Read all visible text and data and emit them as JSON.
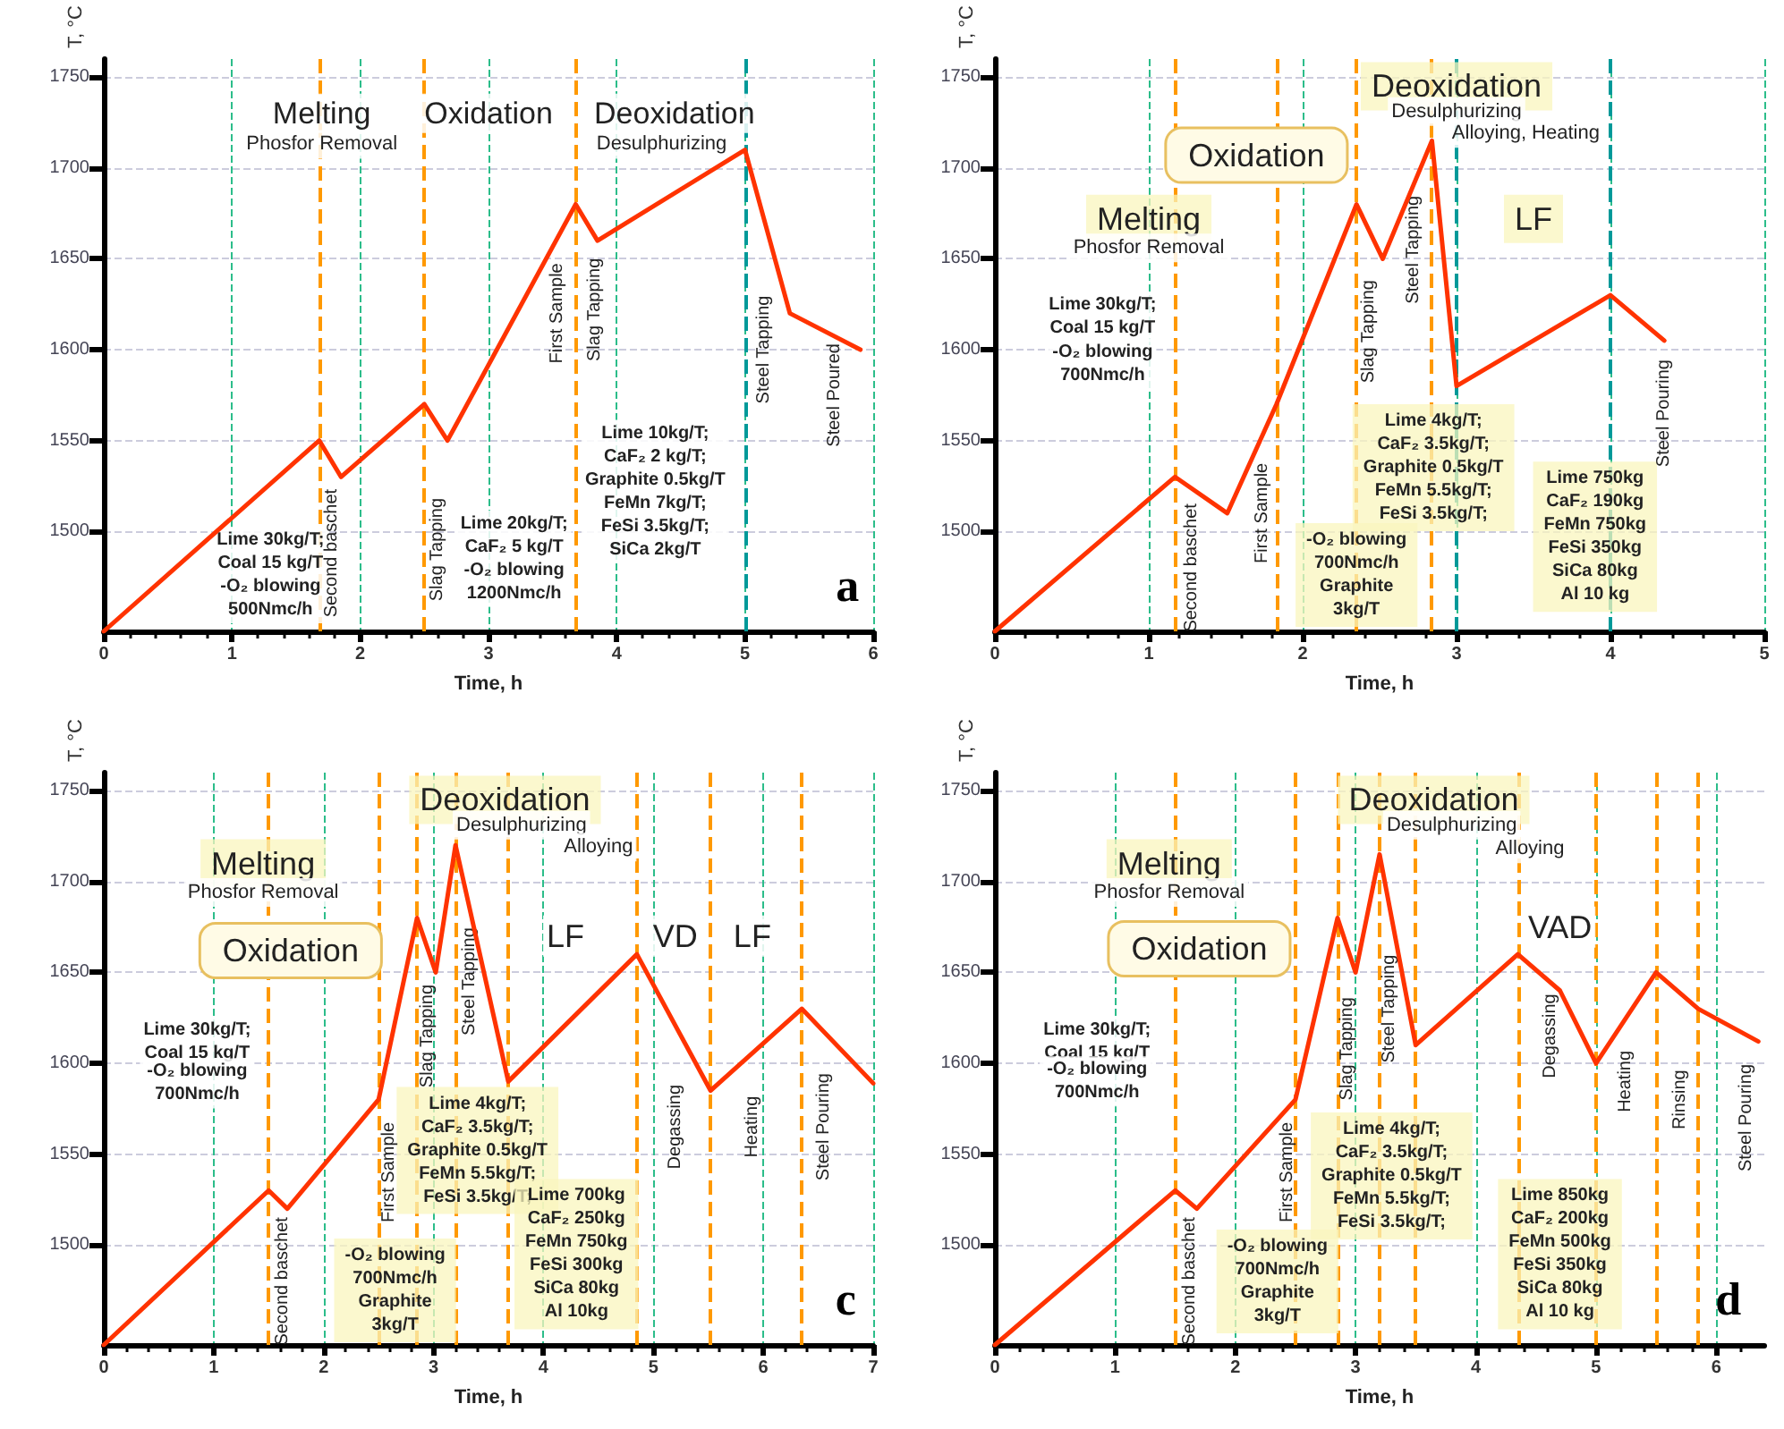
{
  "chart_data": [
    {
      "type": "line",
      "title": "a",
      "xlabel": "Time, h",
      "ylabel": "T, °C",
      "x": [
        0,
        1.68,
        1.85,
        2.5,
        2.68,
        3.68,
        3.85,
        5,
        5.35,
        5.9
      ],
      "series": [
        {
          "color": "#ff3300",
          "values": [
            1445,
            1550,
            1530,
            1570,
            1550,
            1680,
            1660,
            1710,
            1620,
            1600
          ]
        }
      ],
      "xlim": [
        0,
        6
      ],
      "xticks": [
        0,
        1,
        2,
        3,
        4,
        5,
        6
      ],
      "ylim": [
        1445,
        1760
      ],
      "yticks": [
        1500,
        1550,
        1600,
        1650,
        1700,
        1750
      ],
      "grid": true,
      "line_style": "solid",
      "ref_lines": [
        {
          "axis": "x",
          "value": 1.68,
          "color": "#ff9900",
          "line_style": "dashed"
        },
        {
          "axis": "x",
          "value": 2.5,
          "color": "#ff9900",
          "line_style": "dashed"
        },
        {
          "axis": "x",
          "value": 3.68,
          "color": "#ff9900",
          "line_style": "dashed"
        },
        {
          "axis": "x",
          "value": 5,
          "color": "#009999",
          "line_style": "dashed"
        }
      ],
      "annotations": [
        "Melting",
        "Phosfor Removal",
        "Oxidation",
        "Deoxidation",
        "Desulphurizing",
        "Lime 30kg/T;\nCoal 15 kg/T\n-O₂ blowing\n500Nmc/h",
        "Lime 20kg/T;\nCaF₂ 5 kg/T\n-O₂ blowing\n1200Nmc/h",
        "Lime 10kg/T;\nCaF₂ 2 kg/T;\nGraphite 0.5kg/T\nFeMn 7kg/T;\nFeSi 3.5kg/T;\nSiCa 2kg/T",
        "Second baschet",
        "Slag Tapping",
        "First Sample",
        "Slag Tapping",
        "Steel Tapping",
        "Steel Poured"
      ]
    },
    {
      "type": "line",
      "xlabel": "Time, h",
      "ylabel": "T, °C",
      "x": [
        0,
        1.17,
        1.51,
        1.83,
        2.35,
        2.52,
        2.84,
        3,
        4,
        4.35
      ],
      "series": [
        {
          "color": "#ff3300",
          "values": [
            1445,
            1530,
            1510,
            1570,
            1680,
            1650,
            1715,
            1580,
            1630,
            1605
          ]
        }
      ],
      "xlim": [
        0,
        5
      ],
      "xticks": [
        0,
        1,
        2,
        3,
        4,
        5
      ],
      "ylim": [
        1445,
        1760
      ],
      "yticks": [
        1500,
        1550,
        1600,
        1650,
        1700,
        1750
      ],
      "grid": true,
      "line_style": "solid",
      "ref_lines": [
        {
          "axis": "x",
          "value": 1.17,
          "color": "#ff9900",
          "line_style": "dashed"
        },
        {
          "axis": "x",
          "value": 1.83,
          "color": "#ff9900",
          "line_style": "dashed"
        },
        {
          "axis": "x",
          "value": 2.35,
          "color": "#ff9900",
          "line_style": "dashed"
        },
        {
          "axis": "x",
          "value": 2.84,
          "color": "#ff9900",
          "line_style": "dashed"
        },
        {
          "axis": "x",
          "value": 3,
          "color": "#009999",
          "line_style": "dashed"
        },
        {
          "axis": "x",
          "value": 4,
          "color": "#009999",
          "line_style": "dashed"
        }
      ],
      "annotations": [
        "Deoxidation",
        "Desulphurizing",
        "Alloying, Heating",
        "Oxidation",
        "Melting",
        "Phosfor Removal",
        "LF",
        "Lime 30kg/T;\nCoal 15 kg/T",
        "-O₂ blowing\n700Nmc/h",
        "Lime 4kg/T;\nCaF₂ 3.5kg/T;\nGraphite 0.5kg/T\nFeMn 5.5kg/T;\nFeSi 3.5kg/T;",
        "Lime 750kg\nCaF₂ 190kg\nFeMn 750kg\nFeSi 350kg\nSiCa 80kg\nAl 10 kg",
        "-O₂ blowing\n700Nmc/h\nGraphite\n3kg/T",
        "Second baschet",
        "First Sample",
        "Slag Tapping",
        "Steel Tapping",
        "Steel Pouring"
      ]
    },
    {
      "type": "line",
      "title": "c",
      "xlabel": "Time, h",
      "ylabel": "T, °C",
      "x": [
        0,
        1.5,
        1.67,
        2.5,
        2.85,
        3.02,
        3.2,
        3.68,
        4.85,
        5.52,
        6.35,
        7
      ],
      "series": [
        {
          "color": "#ff3300",
          "values": [
            1445,
            1530,
            1520,
            1580,
            1680,
            1650,
            1720,
            1590,
            1660,
            1585,
            1630,
            1589
          ]
        }
      ],
      "xlim": [
        0,
        7
      ],
      "xticks": [
        0,
        1,
        2,
        3,
        4,
        5,
        6,
        7
      ],
      "ylim": [
        1445,
        1760
      ],
      "yticks": [
        1500,
        1550,
        1600,
        1650,
        1700,
        1750
      ],
      "grid": true,
      "line_style": "solid",
      "ref_lines": [
        {
          "axis": "x",
          "value": 1.5,
          "color": "#ff9900",
          "line_style": "dashed"
        },
        {
          "axis": "x",
          "value": 2.5,
          "color": "#ff9900",
          "line_style": "dashed"
        },
        {
          "axis": "x",
          "value": 2.85,
          "color": "#ff9900",
          "line_style": "dashed"
        },
        {
          "axis": "x",
          "value": 3.2,
          "color": "#ff9900",
          "line_style": "dashed"
        },
        {
          "axis": "x",
          "value": 3.68,
          "color": "#ff9900",
          "line_style": "dashed"
        },
        {
          "axis": "x",
          "value": 4.85,
          "color": "#ff9900",
          "line_style": "dashed"
        },
        {
          "axis": "x",
          "value": 5.52,
          "color": "#ff9900",
          "line_style": "dashed"
        },
        {
          "axis": "x",
          "value": 6.35,
          "color": "#ff9900",
          "line_style": "dashed"
        }
      ],
      "annotations": [
        "Melting",
        "Phosfor Removal",
        "Oxidation",
        "Deoxidation",
        "Desulphurizing",
        "Alloying",
        "LF",
        "VD",
        "LF",
        "Lime 30kg/T;\nCoal 15 kg/T",
        "-O₂ blowing\n700Nmc/h",
        "Lime 4kg/T;\nCaF₂ 3.5kg/T;\nGraphite 0.5kg/T\nFeMn 5.5kg/T;\nFeSi 3.5kg/T;",
        "Lime 700kg\nCaF₂ 250kg\nFeMn 750kg\nFeSi 300kg\nSiCa 80kg\nAl 10kg",
        "-O₂ blowing\n700Nmc/h\nGraphite\n3kg/T",
        "Second baschet",
        "First Sample",
        "Slag Tapping",
        "Steel Tapping",
        "Degassing",
        "Heating",
        "Steel Pouring"
      ]
    },
    {
      "type": "line",
      "title": "d",
      "xlabel": "Time, h",
      "ylabel": "T, °C",
      "x": [
        0,
        1.5,
        1.68,
        2.5,
        2.85,
        3,
        3.2,
        3.5,
        4.35,
        4.7,
        5,
        5.5,
        5.85,
        6.35
      ],
      "series": [
        {
          "color": "#ff3300",
          "values": [
            1445,
            1530,
            1520,
            1580,
            1680,
            1650,
            1715,
            1610,
            1660,
            1640,
            1600,
            1650,
            1630,
            1612
          ]
        }
      ],
      "xlim": [
        0,
        6.4
      ],
      "xticks": [
        0,
        1,
        2,
        3,
        4,
        5,
        6
      ],
      "ylim": [
        1445,
        1760
      ],
      "yticks": [
        1500,
        1550,
        1600,
        1650,
        1700,
        1750
      ],
      "grid": true,
      "line_style": "solid",
      "ref_lines": [
        {
          "axis": "x",
          "value": 1.5,
          "color": "#ff9900",
          "line_style": "dashed"
        },
        {
          "axis": "x",
          "value": 2.5,
          "color": "#ff9900",
          "line_style": "dashed"
        },
        {
          "axis": "x",
          "value": 2.85,
          "color": "#ff9900",
          "line_style": "dashed"
        },
        {
          "axis": "x",
          "value": 3.2,
          "color": "#ff9900",
          "line_style": "dashed"
        },
        {
          "axis": "x",
          "value": 3.5,
          "color": "#ff9900",
          "line_style": "dashed"
        },
        {
          "axis": "x",
          "value": 4.35,
          "color": "#ff9900",
          "line_style": "dashed"
        },
        {
          "axis": "x",
          "value": 5,
          "color": "#ff9900",
          "line_style": "dashed"
        },
        {
          "axis": "x",
          "value": 5.5,
          "color": "#ff9900",
          "line_style": "dashed"
        },
        {
          "axis": "x",
          "value": 5.85,
          "color": "#ff9900",
          "line_style": "dashed"
        }
      ],
      "annotations": [
        "Melting",
        "Phosfor Removal",
        "Oxidation",
        "Deoxidation",
        "Desulphurizing",
        "Alloying",
        "VAD",
        "Lime 30kg/T;\nCoal 15 kg/T",
        "-O₂ blowing\n700Nmc/h",
        "Lime 4kg/T;\nCaF₂ 3.5kg/T;\nGraphite 0.5kg/T\nFeMn 5.5kg/T;\nFeSi 3.5kg/T;",
        "Lime 850kg\nCaF₂ 200kg\nFeMn 500kg\nFeSi 350kg\nSiCa 80kg\nAl 10 kg",
        "-O₂ blowing\n700Nmc/h\nGraphite\n3kg/T",
        "Second baschet",
        "First Sample",
        "Slag Tapping",
        "Steel Tapping",
        "Degassing",
        "Heating",
        "Rinsing",
        "Steel Pouring"
      ]
    }
  ]
}
